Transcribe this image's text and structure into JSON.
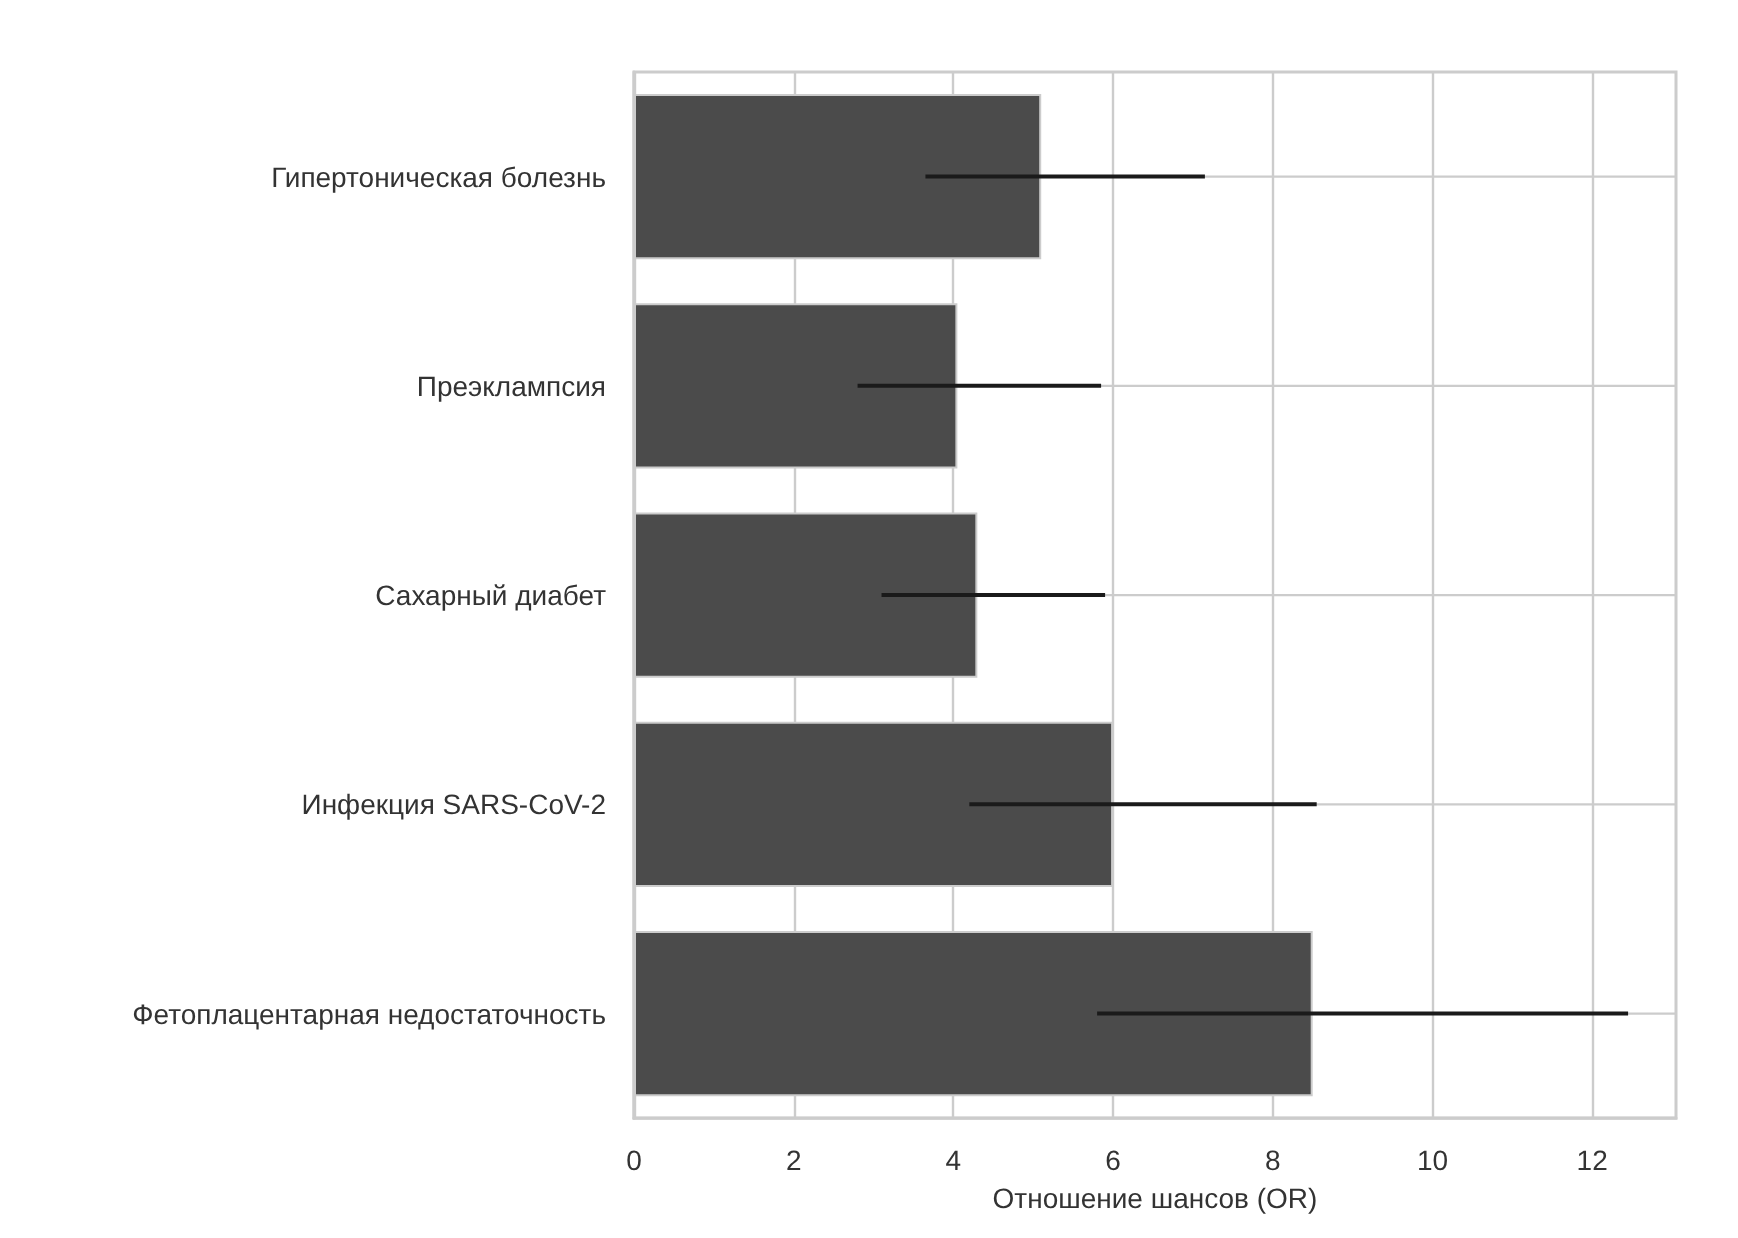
{
  "chart_data": {
    "type": "bar",
    "orientation": "horizontal",
    "xlabel": "Отношение шансов (OR)",
    "categories": [
      "Гипертоническая болезнь",
      "Преэклампсия",
      "Сахарный диабет",
      "Инфекция SARS-CoV-2",
      "Фетоплацентарная недостаточность"
    ],
    "values": [
      5.1,
      4.05,
      4.3,
      6.0,
      8.5
    ],
    "errors": [
      [
        3.65,
        7.15
      ],
      [
        2.8,
        5.85
      ],
      [
        3.1,
        5.9
      ],
      [
        4.2,
        8.55
      ],
      [
        5.8,
        12.45
      ]
    ],
    "color": "#4b4b4b",
    "xlim": [
      0,
      13.05
    ],
    "xticks": [
      0,
      2,
      4,
      6,
      8,
      10,
      12
    ],
    "grid": true
  }
}
